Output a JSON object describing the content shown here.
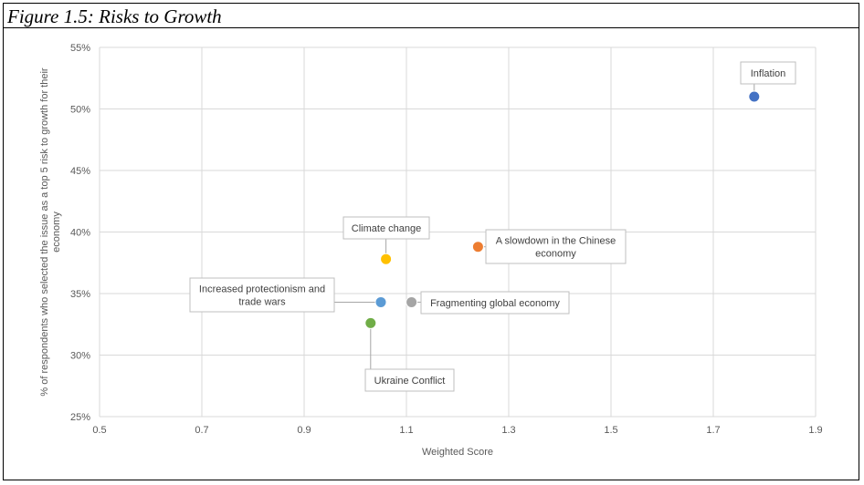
{
  "figure": {
    "title": "Figure 1.5: Risks to Growth"
  },
  "chart_data": {
    "type": "scatter",
    "xlabel": "Weighted Score",
    "ylabel": "% of respondents who selected the issue as a top 5 risk to growth for their economy",
    "xlim": [
      0.5,
      1.9
    ],
    "ylim": [
      25,
      55
    ],
    "x_ticks": [
      "0.5",
      "0.7",
      "0.9",
      "1.1",
      "1.3",
      "1.5",
      "1.7",
      "1.9"
    ],
    "y_ticks": [
      "25%",
      "30%",
      "35%",
      "40%",
      "45%",
      "50%",
      "55%"
    ],
    "x_tick_values": [
      0.5,
      0.7,
      0.9,
      1.1,
      1.3,
      1.5,
      1.7,
      1.9
    ],
    "y_tick_values": [
      25,
      30,
      35,
      40,
      45,
      50,
      55
    ],
    "grid": true,
    "legend": "none",
    "points": [
      {
        "label": [
          "Inflation"
        ],
        "x": 1.78,
        "y": 51.0,
        "color": "#4472c4"
      },
      {
        "label": [
          "A slowdown in the Chinese",
          "economy"
        ],
        "x": 1.24,
        "y": 38.8,
        "color": "#ed7d31"
      },
      {
        "label": [
          "Climate change"
        ],
        "x": 1.06,
        "y": 37.8,
        "color": "#ffc000"
      },
      {
        "label": [
          "Increased protectionism and",
          "trade wars"
        ],
        "x": 1.05,
        "y": 34.3,
        "color": "#5b9bd5"
      },
      {
        "label": [
          "Fragmenting global economy"
        ],
        "x": 1.11,
        "y": 34.3,
        "color": "#a5a5a5"
      },
      {
        "label": [
          "Ukraine Conflict"
        ],
        "x": 1.03,
        "y": 32.6,
        "color": "#70ad47"
      }
    ]
  }
}
